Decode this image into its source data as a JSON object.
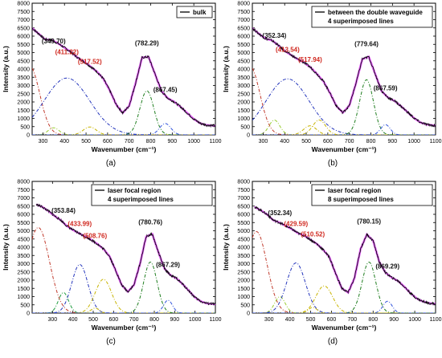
{
  "chart_data": [
    {
      "type": "line",
      "panel_label": "(a)",
      "xlabel": "Wavenumber (cm⁻¹)",
      "ylabel": "Intensity (a.u.)",
      "xlim": [
        250,
        1100
      ],
      "ylim": [
        0,
        8000
      ],
      "xticks": [
        300,
        400,
        500,
        600,
        700,
        800,
        900,
        1000,
        1100
      ],
      "yticks": [
        0,
        500,
        1000,
        1500,
        2000,
        2500,
        3000,
        3500,
        4000,
        4500,
        5000,
        5500,
        6000,
        6500,
        7000,
        7500,
        8000
      ],
      "legend": {
        "position": "top-right",
        "lines": [
          "bulk"
        ]
      },
      "measured": {
        "x": [
          250,
          280,
          310,
          340,
          370,
          400,
          430,
          460,
          490,
          520,
          550,
          580,
          610,
          640,
          670,
          700,
          730,
          760,
          790,
          820,
          850,
          880,
          910,
          940,
          970,
          1000,
          1030,
          1060,
          1100
        ],
        "y": [
          6480,
          6150,
          5800,
          5760,
          5560,
          5300,
          5030,
          4700,
          4450,
          4160,
          3850,
          3420,
          2700,
          1840,
          1330,
          1760,
          3150,
          4700,
          4740,
          3700,
          2650,
          2220,
          2000,
          1690,
          1320,
          960,
          700,
          590,
          560
        ]
      },
      "components": [
        {
          "center": 240,
          "amplitude": 4150,
          "width": 45,
          "color": "#c0392b"
        },
        {
          "center": 349.7,
          "amplitude": 430,
          "width": 25,
          "color": "#9acd32"
        },
        {
          "center": 411.22,
          "amplitude": 3450,
          "width": 105,
          "color": "#2233bb"
        },
        {
          "center": 517.52,
          "amplitude": 480,
          "width": 30,
          "color": "#c8b400"
        },
        {
          "center": 782.29,
          "amplitude": 2680,
          "width": 32,
          "color": "#1e7d1e"
        },
        {
          "center": 867.45,
          "amplitude": 690,
          "width": 26,
          "color": "#3355dd"
        }
      ],
      "annotations": [
        {
          "text": "(349.70)",
          "x": 349.7,
          "y": 5550,
          "color": "#111111"
        },
        {
          "text": "(411.22)",
          "x": 411.22,
          "y": 4900,
          "color": "#d0281f"
        },
        {
          "text": "(517.52)",
          "x": 517.52,
          "y": 4320,
          "color": "#d0281f"
        },
        {
          "text": "(782.29)",
          "x": 782.29,
          "y": 5450,
          "color": "#111111"
        },
        {
          "text": "(867.45)",
          "x": 867.45,
          "y": 2600,
          "color": "#111111"
        }
      ]
    },
    {
      "type": "line",
      "panel_label": "(b)",
      "xlabel": "Wavenumber (cm⁻¹)",
      "ylabel": "Intensity (a.u.)",
      "xlim": [
        250,
        1100
      ],
      "ylim": [
        0,
        8000
      ],
      "xticks": [
        300,
        400,
        500,
        600,
        700,
        800,
        900,
        1000,
        1100
      ],
      "yticks": [
        0,
        500,
        1000,
        1500,
        2000,
        2500,
        3000,
        3500,
        4000,
        4500,
        5000,
        5500,
        6000,
        6500,
        7000,
        7500,
        8000
      ],
      "legend": {
        "position": "top-right",
        "lines": [
          "between the double waveguide",
          "4 superimposed lines"
        ]
      },
      "measured": {
        "x": [
          250,
          280,
          310,
          340,
          370,
          400,
          430,
          460,
          490,
          520,
          550,
          580,
          610,
          640,
          670,
          700,
          730,
          760,
          790,
          820,
          850,
          880,
          910,
          940,
          970,
          1000,
          1030,
          1060,
          1100
        ],
        "y": [
          6480,
          6150,
          5850,
          5750,
          5450,
          5100,
          4850,
          4600,
          4400,
          4100,
          3700,
          3250,
          2550,
          1750,
          1350,
          1780,
          3100,
          4600,
          4750,
          3700,
          2650,
          2260,
          2060,
          1740,
          1380,
          1020,
          750,
          630,
          560
        ]
      },
      "components": [
        {
          "center": 240,
          "amplitude": 4150,
          "width": 45,
          "color": "#c0392b"
        },
        {
          "center": 352.34,
          "amplitude": 900,
          "width": 25,
          "color": "#9acd32"
        },
        {
          "center": 413.54,
          "amplitude": 3400,
          "width": 100,
          "color": "#2233bb"
        },
        {
          "center": 517.94,
          "amplitude": 550,
          "width": 30,
          "color": "#c8b400"
        },
        {
          "center": 560,
          "amplitude": 900,
          "width": 30,
          "color": "#c8b400"
        },
        {
          "center": 779.64,
          "amplitude": 3350,
          "width": 32,
          "color": "#1e7d1e"
        },
        {
          "center": 867.59,
          "amplitude": 620,
          "width": 22,
          "color": "#3355dd"
        }
      ],
      "annotations": [
        {
          "text": "(352.34)",
          "x": 352.34,
          "y": 5900,
          "color": "#111111"
        },
        {
          "text": "(413.54)",
          "x": 413.54,
          "y": 5050,
          "color": "#d0281f"
        },
        {
          "text": "(517.94)",
          "x": 517.94,
          "y": 4450,
          "color": "#d0281f"
        },
        {
          "text": "(779.64)",
          "x": 779.64,
          "y": 5400,
          "color": "#111111"
        },
        {
          "text": "(867.59)",
          "x": 867.59,
          "y": 2700,
          "color": "#111111"
        }
      ]
    },
    {
      "type": "line",
      "panel_label": "(c)",
      "xlabel": "Wavenumber (cm⁻¹)",
      "ylabel": "Intensity (a.u.)",
      "xlim": [
        200,
        1100
      ],
      "ylim": [
        0,
        8000
      ],
      "xticks": [
        300,
        400,
        500,
        600,
        700,
        800,
        900,
        1000,
        1100
      ],
      "yticks": [
        0,
        500,
        1000,
        1500,
        2000,
        2500,
        3000,
        3500,
        4000,
        4500,
        5000,
        5500,
        6000,
        6500,
        7000,
        7500,
        8000
      ],
      "legend": {
        "position": "top-right",
        "lines": [
          "laser focal region",
          "4 superimposed lines"
        ]
      },
      "measured": {
        "x": [
          220,
          250,
          280,
          310,
          340,
          370,
          400,
          430,
          460,
          490,
          520,
          550,
          580,
          610,
          640,
          670,
          700,
          730,
          760,
          790,
          820,
          850,
          880,
          910,
          940,
          970,
          1000,
          1030,
          1060,
          1100
        ],
        "y": [
          6600,
          6450,
          6200,
          5900,
          5650,
          5300,
          5050,
          4850,
          4650,
          4450,
          4200,
          3900,
          3450,
          2600,
          1700,
          1300,
          1700,
          3000,
          4650,
          4800,
          3700,
          2700,
          2300,
          2100,
          1750,
          1350,
          950,
          700,
          580,
          540
        ]
      },
      "components": [
        {
          "center": 230,
          "amplitude": 5200,
          "width": 55,
          "color": "#c0392b"
        },
        {
          "center": 353.84,
          "amplitude": 1250,
          "width": 25,
          "color": "#1e9d3e"
        },
        {
          "center": 433.99,
          "amplitude": 2950,
          "width": 40,
          "color": "#2233bb"
        },
        {
          "center": 508.76,
          "amplitude": 300,
          "width": 20,
          "color": "#c8b400"
        },
        {
          "center": 550,
          "amplitude": 2050,
          "width": 40,
          "color": "#c8b400"
        },
        {
          "center": 780.76,
          "amplitude": 3100,
          "width": 33,
          "color": "#1e7d1e"
        },
        {
          "center": 867.29,
          "amplitude": 780,
          "width": 22,
          "color": "#3355dd"
        }
      ],
      "annotations": [
        {
          "text": "(353.84)",
          "x": 353.84,
          "y": 6100,
          "color": "#111111"
        },
        {
          "text": "(433.99)",
          "x": 433.99,
          "y": 5300,
          "color": "#d0281f"
        },
        {
          "text": "(508.76)",
          "x": 508.76,
          "y": 4550,
          "color": "#d0281f"
        },
        {
          "text": "(780.76)",
          "x": 780.76,
          "y": 5400,
          "color": "#111111"
        },
        {
          "text": "(867.29)",
          "x": 867.29,
          "y": 2800,
          "color": "#111111"
        }
      ]
    },
    {
      "type": "line",
      "panel_label": "(d)",
      "xlabel": "Wavenumber (cm⁻¹)",
      "ylabel": "Intensity (a.u.)",
      "xlim": [
        220,
        1100
      ],
      "ylim": [
        0,
        8000
      ],
      "xticks": [
        300,
        400,
        500,
        600,
        700,
        800,
        900,
        1000,
        1100
      ],
      "yticks": [
        0,
        500,
        1000,
        1500,
        2000,
        2500,
        3000,
        3500,
        4000,
        4500,
        5000,
        5500,
        6000,
        6500,
        7000,
        7500,
        8000
      ],
      "legend": {
        "position": "top-right",
        "lines": [
          "laser focal region",
          "8 superimposed lines"
        ]
      },
      "measured": {
        "x": [
          230,
          260,
          290,
          320,
          350,
          380,
          410,
          440,
          470,
          500,
          530,
          560,
          590,
          620,
          650,
          680,
          710,
          740,
          770,
          800,
          830,
          860,
          890,
          920,
          950,
          980,
          1010,
          1040,
          1070,
          1100
        ],
        "y": [
          6450,
          6250,
          6000,
          5650,
          5500,
          5300,
          5100,
          4850,
          4700,
          4450,
          4200,
          3850,
          3400,
          2400,
          1500,
          1250,
          2100,
          3900,
          4780,
          4400,
          3100,
          2450,
          2150,
          1950,
          1600,
          1200,
          880,
          700,
          600,
          560
        ]
      },
      "components": [
        {
          "center": 240,
          "amplitude": 4950,
          "width": 50,
          "color": "#c0392b"
        },
        {
          "center": 352.34,
          "amplitude": 1000,
          "width": 25,
          "color": "#9acd32"
        },
        {
          "center": 429.59,
          "amplitude": 3050,
          "width": 45,
          "color": "#2233bb"
        },
        {
          "center": 510.52,
          "amplitude": 350,
          "width": 20,
          "color": "#c8b400"
        },
        {
          "center": 565,
          "amplitude": 1650,
          "width": 40,
          "color": "#c8b400"
        },
        {
          "center": 780.15,
          "amplitude": 3100,
          "width": 33,
          "color": "#1e7d1e"
        },
        {
          "center": 869.29,
          "amplitude": 720,
          "width": 22,
          "color": "#3355dd"
        }
      ],
      "annotations": [
        {
          "text": "(352.34)",
          "x": 352.34,
          "y": 5950,
          "color": "#111111"
        },
        {
          "text": "(429.59)",
          "x": 429.59,
          "y": 5300,
          "color": "#d0281f"
        },
        {
          "text": "(510.52)",
          "x": 510.52,
          "y": 4650,
          "color": "#d0281f"
        },
        {
          "text": "(780.15)",
          "x": 780.15,
          "y": 5450,
          "color": "#111111"
        },
        {
          "text": "(869.29)",
          "x": 869.29,
          "y": 2700,
          "color": "#111111"
        }
      ]
    }
  ],
  "style": {
    "measured_color": "#111111",
    "fit_color": "#e040fb"
  }
}
